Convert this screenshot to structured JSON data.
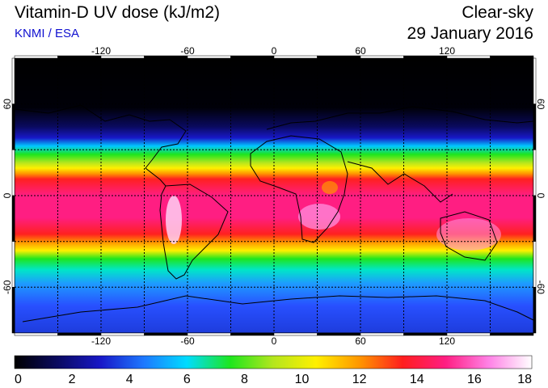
{
  "header": {
    "title": "Vitamin-D UV dose (kJ/m2)",
    "source": "KNMI / ESA",
    "mode": "Clear-sky",
    "date": "29 January 2016"
  },
  "map": {
    "lon_labels": [
      "-120",
      "-60",
      "0",
      "60",
      "120"
    ],
    "lat_labels": [
      "60",
      "0",
      "-60"
    ],
    "lon_values": [
      -120,
      -60,
      0,
      60,
      120
    ],
    "lat_values": [
      60,
      0,
      -60
    ],
    "lon_range": [
      -180,
      180
    ],
    "lat_range": [
      -90,
      90
    ],
    "grid": "dotted every 30 degrees"
  },
  "colorbar": {
    "ticks": [
      "0",
      "2",
      "4",
      "6",
      "8",
      "10",
      "12",
      "14",
      "16",
      "18"
    ],
    "min": 0,
    "max": 18,
    "colors": [
      "#000000",
      "#0a0a60",
      "#1818c8",
      "#1e78ff",
      "#00dcff",
      "#1ee61e",
      "#b4e61e",
      "#fff000",
      "#ff9600",
      "#ff1e1e",
      "#ff1e82",
      "#ff82e6",
      "#ffffff"
    ]
  }
}
